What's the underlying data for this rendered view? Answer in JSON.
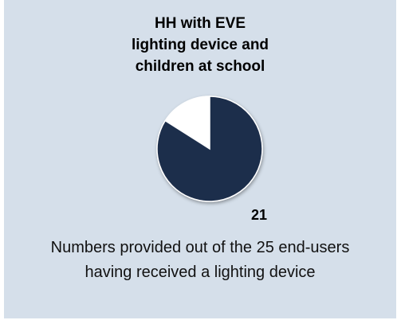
{
  "chart_data": {
    "type": "pie",
    "title": "HH with EVE\nlighting device and\nchildren at school",
    "slices": [
      {
        "value": 21,
        "label": "21",
        "color": "#1e2e4c"
      },
      {
        "value": 4,
        "label": "",
        "color": "#ffffff"
      }
    ],
    "total": 25
  },
  "caption": "Numbers provided out of the 25 end-users\nhaving received a lighting device"
}
